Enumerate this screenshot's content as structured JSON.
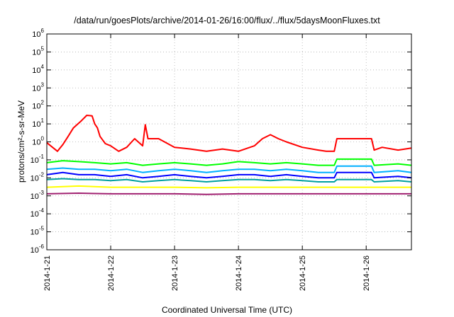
{
  "chart_data": {
    "type": "line",
    "title": "/data/run/goesPlots/archive/2014-01-26/16:00/flux/../flux/5daysMoonFluxes.txt",
    "xlabel": "Coordinated Universal Time (UTC)",
    "ylabel": "protons/cm²-s-sr-MeV",
    "yscale": "log",
    "ylim": [
      1e-06,
      1000000.0
    ],
    "xlim": [
      "2014-01-21T00:00",
      "2014-01-26T17:00"
    ],
    "grid": true,
    "x_tick_labels": [
      "2014-1-21",
      "2014-1-22",
      "2014-1-23",
      "2014-1-24",
      "2014-1-25",
      "2014-1-26"
    ],
    "y_tick_labels": [
      {
        "base": "10",
        "exp": "-6"
      },
      {
        "base": "10",
        "exp": "-5"
      },
      {
        "base": "10",
        "exp": "-4"
      },
      {
        "base": "10",
        "exp": "-3"
      },
      {
        "base": "10",
        "exp": "-2"
      },
      {
        "base": "10",
        "exp": "-1"
      },
      {
        "base": "10",
        "exp": "0"
      },
      {
        "base": "10",
        "exp": "1"
      },
      {
        "base": "10",
        "exp": "2"
      },
      {
        "base": "10",
        "exp": "3"
      },
      {
        "base": "10",
        "exp": "4"
      },
      {
        "base": "10",
        "exp": "5"
      },
      {
        "base": "10",
        "exp": "6"
      }
    ],
    "series": [
      {
        "color": "#ff0000",
        "x": [
          "2014-01-21T00:00",
          "2014-01-21T04:00",
          "2014-01-21T06:00",
          "2014-01-21T08:00",
          "2014-01-21T10:00",
          "2014-01-21T13:00",
          "2014-01-21T15:00",
          "2014-01-21T17:00",
          "2014-01-21T18:00",
          "2014-01-21T19:00",
          "2014-01-21T20:00",
          "2014-01-21T22:00",
          "2014-01-22T00:00",
          "2014-01-22T03:00",
          "2014-01-22T06:00",
          "2014-01-22T09:00",
          "2014-01-22T12:00",
          "2014-01-22T13:00",
          "2014-01-22T14:00",
          "2014-01-22T18:00",
          "2014-01-23T00:00",
          "2014-01-23T06:00",
          "2014-01-23T12:00",
          "2014-01-23T18:00",
          "2014-01-24T00:00",
          "2014-01-24T06:00",
          "2014-01-24T09:00",
          "2014-01-24T12:00",
          "2014-01-24T15:00",
          "2014-01-24T18:00",
          "2014-01-25T00:00",
          "2014-01-25T06:00",
          "2014-01-25T09:00",
          "2014-01-25T12:00",
          "2014-01-25T13:00",
          "2014-01-25T18:00",
          "2014-01-26T02:00",
          "2014-01-26T03:00",
          "2014-01-26T06:00",
          "2014-01-26T12:00",
          "2014-01-26T17:00"
        ],
        "y": [
          0.9,
          0.3,
          0.7,
          2,
          6,
          15,
          30,
          28,
          10,
          6,
          2,
          0.8,
          0.6,
          0.3,
          0.5,
          1.5,
          0.6,
          9,
          1.5,
          1.5,
          0.5,
          0.4,
          0.3,
          0.4,
          0.3,
          0.6,
          1.5,
          2.5,
          1.5,
          1,
          0.5,
          0.35,
          0.3,
          0.3,
          1.5,
          1.5,
          1.5,
          0.35,
          0.5,
          0.35,
          0.45
        ]
      },
      {
        "color": "#00ff00",
        "x": [
          "2014-01-21T00:00",
          "2014-01-21T06:00",
          "2014-01-21T12:00",
          "2014-01-21T18:00",
          "2014-01-22T00:00",
          "2014-01-22T06:00",
          "2014-01-22T12:00",
          "2014-01-22T18:00",
          "2014-01-23T00:00",
          "2014-01-23T06:00",
          "2014-01-23T12:00",
          "2014-01-23T18:00",
          "2014-01-24T00:00",
          "2014-01-24T06:00",
          "2014-01-24T12:00",
          "2014-01-24T18:00",
          "2014-01-25T00:00",
          "2014-01-25T06:00",
          "2014-01-25T12:00",
          "2014-01-25T13:00",
          "2014-01-26T02:00",
          "2014-01-26T03:00",
          "2014-01-26T12:00",
          "2014-01-26T17:00"
        ],
        "y": [
          0.07,
          0.09,
          0.08,
          0.07,
          0.06,
          0.07,
          0.05,
          0.06,
          0.07,
          0.06,
          0.05,
          0.06,
          0.08,
          0.07,
          0.06,
          0.07,
          0.06,
          0.05,
          0.05,
          0.11,
          0.11,
          0.05,
          0.06,
          0.05
        ]
      },
      {
        "color": "#00b0ff",
        "x": [
          "2014-01-21T00:00",
          "2014-01-21T06:00",
          "2014-01-21T12:00",
          "2014-01-21T18:00",
          "2014-01-22T00:00",
          "2014-01-22T06:00",
          "2014-01-22T12:00",
          "2014-01-22T18:00",
          "2014-01-23T00:00",
          "2014-01-23T06:00",
          "2014-01-23T12:00",
          "2014-01-23T18:00",
          "2014-01-24T00:00",
          "2014-01-24T06:00",
          "2014-01-24T12:00",
          "2014-01-24T18:00",
          "2014-01-25T00:00",
          "2014-01-25T06:00",
          "2014-01-25T12:00",
          "2014-01-25T13:00",
          "2014-01-26T02:00",
          "2014-01-26T03:00",
          "2014-01-26T12:00",
          "2014-01-26T17:00"
        ],
        "y": [
          0.03,
          0.035,
          0.03,
          0.03,
          0.025,
          0.03,
          0.02,
          0.025,
          0.03,
          0.025,
          0.02,
          0.025,
          0.03,
          0.03,
          0.025,
          0.03,
          0.025,
          0.02,
          0.02,
          0.045,
          0.045,
          0.02,
          0.025,
          0.02
        ]
      },
      {
        "color": "#0000ff",
        "x": [
          "2014-01-21T00:00",
          "2014-01-21T06:00",
          "2014-01-21T12:00",
          "2014-01-21T18:00",
          "2014-01-22T00:00",
          "2014-01-22T06:00",
          "2014-01-22T12:00",
          "2014-01-22T18:00",
          "2014-01-23T00:00",
          "2014-01-23T06:00",
          "2014-01-23T12:00",
          "2014-01-23T18:00",
          "2014-01-24T00:00",
          "2014-01-24T06:00",
          "2014-01-24T12:00",
          "2014-01-24T18:00",
          "2014-01-25T00:00",
          "2014-01-25T06:00",
          "2014-01-25T12:00",
          "2014-01-25T13:00",
          "2014-01-26T02:00",
          "2014-01-26T03:00",
          "2014-01-26T12:00",
          "2014-01-26T17:00"
        ],
        "y": [
          0.015,
          0.02,
          0.015,
          0.015,
          0.012,
          0.015,
          0.01,
          0.012,
          0.015,
          0.012,
          0.01,
          0.012,
          0.015,
          0.015,
          0.012,
          0.015,
          0.012,
          0.01,
          0.01,
          0.02,
          0.02,
          0.01,
          0.012,
          0.01
        ]
      },
      {
        "color": "#00a0a0",
        "x": [
          "2014-01-21T00:00",
          "2014-01-21T06:00",
          "2014-01-21T12:00",
          "2014-01-21T18:00",
          "2014-01-22T00:00",
          "2014-01-22T06:00",
          "2014-01-22T12:00",
          "2014-01-22T18:00",
          "2014-01-23T00:00",
          "2014-01-23T06:00",
          "2014-01-23T12:00",
          "2014-01-23T18:00",
          "2014-01-24T00:00",
          "2014-01-24T06:00",
          "2014-01-24T12:00",
          "2014-01-24T18:00",
          "2014-01-25T00:00",
          "2014-01-25T06:00",
          "2014-01-25T12:00",
          "2014-01-25T13:00",
          "2014-01-26T02:00",
          "2014-01-26T03:00",
          "2014-01-26T12:00",
          "2014-01-26T17:00"
        ],
        "y": [
          0.008,
          0.009,
          0.008,
          0.008,
          0.007,
          0.008,
          0.006,
          0.007,
          0.008,
          0.007,
          0.006,
          0.007,
          0.008,
          0.008,
          0.007,
          0.008,
          0.007,
          0.006,
          0.006,
          0.008,
          0.008,
          0.006,
          0.007,
          0.006
        ]
      },
      {
        "color": "#ffff00",
        "x": [
          "2014-01-21T00:00",
          "2014-01-21T12:00",
          "2014-01-22T00:00",
          "2014-01-22T12:00",
          "2014-01-23T00:00",
          "2014-01-23T12:00",
          "2014-01-24T00:00",
          "2014-01-24T12:00",
          "2014-01-25T00:00",
          "2014-01-25T12:00",
          "2014-01-26T00:00",
          "2014-01-26T12:00",
          "2014-01-26T17:00"
        ],
        "y": [
          0.003,
          0.0035,
          0.003,
          0.003,
          0.003,
          0.0028,
          0.003,
          0.003,
          0.003,
          0.003,
          0.003,
          0.003,
          0.003
        ]
      },
      {
        "color": "#a02070",
        "x": [
          "2014-01-21T00:00",
          "2014-01-21T12:00",
          "2014-01-22T00:00",
          "2014-01-22T12:00",
          "2014-01-23T00:00",
          "2014-01-23T12:00",
          "2014-01-24T00:00",
          "2014-01-24T12:00",
          "2014-01-25T00:00",
          "2014-01-25T12:00",
          "2014-01-26T00:00",
          "2014-01-26T12:00",
          "2014-01-26T17:00"
        ],
        "y": [
          0.0013,
          0.0014,
          0.0013,
          0.0013,
          0.0013,
          0.0012,
          0.0013,
          0.0013,
          0.0013,
          0.0013,
          0.0013,
          0.0013,
          0.0013
        ]
      }
    ]
  }
}
